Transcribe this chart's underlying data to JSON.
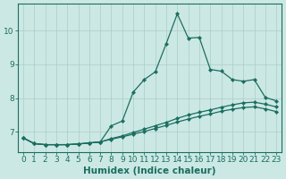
{
  "title": "",
  "xlabel": "Humidex (Indice chaleur)",
  "ylabel": "",
  "xlim": [
    -0.5,
    23.5
  ],
  "ylim": [
    6.4,
    10.8
  ],
  "yticks": [
    7,
    8,
    9,
    10
  ],
  "xticks": [
    0,
    1,
    2,
    3,
    4,
    5,
    6,
    7,
    8,
    9,
    10,
    11,
    12,
    13,
    14,
    15,
    16,
    17,
    18,
    19,
    20,
    21,
    22,
    23
  ],
  "bg_color": "#cce8e4",
  "grid_color": "#aaccc8",
  "line_color": "#1a6e60",
  "lines": [
    [
      6.82,
      6.65,
      6.62,
      6.62,
      6.62,
      6.64,
      6.67,
      6.7,
      7.18,
      7.32,
      8.18,
      8.55,
      8.78,
      9.62,
      10.5,
      9.78,
      9.8,
      8.85,
      8.8,
      8.55,
      8.5,
      8.55,
      8.02,
      7.92
    ],
    [
      6.82,
      6.65,
      6.62,
      6.62,
      6.62,
      6.64,
      6.67,
      6.7,
      6.8,
      6.88,
      6.98,
      7.08,
      7.18,
      7.28,
      7.4,
      7.5,
      7.58,
      7.65,
      7.73,
      7.8,
      7.86,
      7.88,
      7.82,
      7.74
    ],
    [
      6.82,
      6.65,
      6.62,
      6.62,
      6.62,
      6.64,
      6.67,
      6.7,
      6.78,
      6.85,
      6.93,
      7.01,
      7.1,
      7.19,
      7.29,
      7.38,
      7.46,
      7.53,
      7.61,
      7.67,
      7.72,
      7.74,
      7.68,
      7.6
    ]
  ],
  "marker": "D",
  "markersize": 2.2,
  "linewidth": 0.9,
  "xlabel_fontsize": 7.5,
  "tick_fontsize": 6.5
}
